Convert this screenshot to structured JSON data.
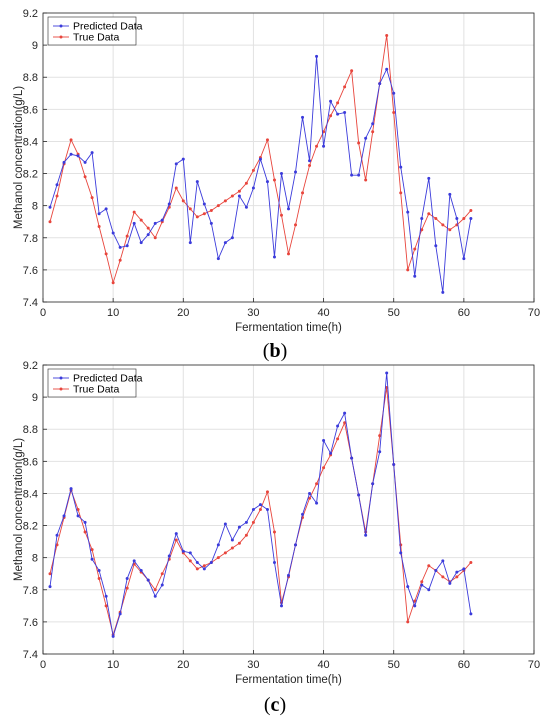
{
  "chart_data": [
    {
      "type": "line",
      "panel_label": "b",
      "xlabel": "Fermentation time(h)",
      "ylabel": "Methanol concentration(g/L)",
      "xlim": [
        0,
        70
      ],
      "ylim": [
        7.4,
        9.2
      ],
      "xticks": [
        0,
        10,
        20,
        30,
        40,
        50,
        60,
        70
      ],
      "yticks": [
        7.4,
        7.6,
        7.8,
        8.0,
        8.2,
        8.4,
        8.6,
        8.8,
        9.0,
        9.2
      ],
      "ytick_labels": [
        "7.4",
        "7.6",
        "7.8",
        "8",
        "8.2",
        "8.4",
        "8.6",
        "8.8",
        "9",
        "9.2"
      ],
      "grid": true,
      "legend": "top-left",
      "colors": {
        "predicted": "#3b3bdb",
        "true": "#e8453c"
      },
      "x": [
        1,
        2,
        3,
        4,
        5,
        6,
        7,
        8,
        9,
        10,
        11,
        12,
        13,
        14,
        15,
        16,
        17,
        18,
        19,
        20,
        21,
        22,
        23,
        24,
        25,
        26,
        27,
        28,
        29,
        30,
        31,
        32,
        33,
        34,
        35,
        36,
        37,
        38,
        39,
        40,
        41,
        42,
        43,
        44,
        45,
        46,
        47,
        48,
        49,
        50,
        51,
        52,
        53,
        54,
        55,
        56,
        57,
        58,
        59,
        60,
        61
      ],
      "series": [
        {
          "name": "Predicted Data",
          "values": [
            7.99,
            8.13,
            8.27,
            8.32,
            8.31,
            8.27,
            8.33,
            7.95,
            7.98,
            7.83,
            7.74,
            7.75,
            7.89,
            7.77,
            7.82,
            7.89,
            7.91,
            8.01,
            8.26,
            8.29,
            7.77,
            8.15,
            8.01,
            7.89,
            7.67,
            7.77,
            7.8,
            8.06,
            7.99,
            8.11,
            8.29,
            8.15,
            7.68,
            8.2,
            7.98,
            8.21,
            8.55,
            8.28,
            8.93,
            8.37,
            8.65,
            8.57,
            8.58,
            8.19,
            8.19,
            8.42,
            8.51,
            8.76,
            8.85,
            8.7,
            8.24,
            7.96,
            7.56,
            7.92,
            8.17,
            7.75,
            7.46,
            8.07,
            7.92,
            7.67,
            7.92
          ]
        },
        {
          "name": "True Data",
          "values": [
            7.9,
            8.06,
            8.26,
            8.41,
            8.32,
            8.18,
            8.05,
            7.87,
            7.7,
            7.52,
            7.66,
            7.81,
            7.96,
            7.91,
            7.86,
            7.8,
            7.9,
            7.99,
            8.11,
            8.03,
            7.98,
            7.93,
            7.95,
            7.97,
            8.0,
            8.03,
            8.06,
            8.09,
            8.14,
            8.22,
            8.3,
            8.41,
            8.16,
            7.94,
            7.7,
            7.88,
            8.08,
            8.25,
            8.37,
            8.46,
            8.56,
            8.64,
            8.74,
            8.84,
            8.39,
            8.16,
            8.46,
            8.76,
            9.06,
            8.58,
            8.08,
            7.6,
            7.73,
            7.85,
            7.95,
            7.92,
            7.88,
            7.85,
            7.88,
            7.92,
            7.97
          ]
        }
      ]
    },
    {
      "type": "line",
      "panel_label": "c",
      "xlabel": "Fermentation time(h)",
      "ylabel": "Methanol concentration(g/L)",
      "xlim": [
        0,
        70
      ],
      "ylim": [
        7.4,
        9.2
      ],
      "xticks": [
        0,
        10,
        20,
        30,
        40,
        50,
        60,
        70
      ],
      "yticks": [
        7.4,
        7.6,
        7.8,
        8.0,
        8.2,
        8.4,
        8.6,
        8.8,
        9.0,
        9.2
      ],
      "ytick_labels": [
        "7.4",
        "7.6",
        "7.8",
        "8",
        "8.2",
        "8.4",
        "8.6",
        "8.8",
        "9",
        "9.2"
      ],
      "grid": true,
      "legend": "top-left",
      "colors": {
        "predicted": "#3b3bdb",
        "true": "#e8453c"
      },
      "x": [
        1,
        2,
        3,
        4,
        5,
        6,
        7,
        8,
        9,
        10,
        11,
        12,
        13,
        14,
        15,
        16,
        17,
        18,
        19,
        20,
        21,
        22,
        23,
        24,
        25,
        26,
        27,
        28,
        29,
        30,
        31,
        32,
        33,
        34,
        35,
        36,
        37,
        38,
        39,
        40,
        41,
        42,
        43,
        44,
        45,
        46,
        47,
        48,
        49,
        50,
        51,
        52,
        53,
        54,
        55,
        56,
        57,
        58,
        59,
        60,
        61
      ],
      "series": [
        {
          "name": "Predicted Data",
          "values": [
            7.82,
            8.14,
            8.26,
            8.43,
            8.26,
            8.22,
            7.99,
            7.92,
            7.76,
            7.51,
            7.65,
            7.87,
            7.98,
            7.92,
            7.86,
            7.76,
            7.83,
            8.01,
            8.15,
            8.04,
            8.03,
            7.97,
            7.93,
            7.97,
            8.08,
            8.21,
            8.11,
            8.19,
            8.22,
            8.3,
            8.33,
            8.3,
            7.97,
            7.7,
            7.89,
            8.08,
            8.27,
            8.4,
            8.34,
            8.73,
            8.65,
            8.82,
            8.9,
            8.62,
            8.39,
            8.14,
            8.46,
            8.66,
            9.15,
            8.58,
            8.03,
            7.82,
            7.7,
            7.83,
            7.8,
            7.92,
            7.98,
            7.84,
            7.91,
            7.93,
            7.65
          ]
        },
        {
          "name": "True Data",
          "values": [
            7.9,
            8.08,
            8.25,
            8.42,
            8.3,
            8.16,
            8.05,
            7.87,
            7.7,
            7.52,
            7.66,
            7.81,
            7.96,
            7.91,
            7.86,
            7.8,
            7.9,
            7.99,
            8.11,
            8.03,
            7.98,
            7.93,
            7.95,
            7.97,
            8.0,
            8.03,
            8.06,
            8.09,
            8.14,
            8.22,
            8.3,
            8.41,
            8.16,
            7.72,
            7.88,
            8.08,
            8.25,
            8.37,
            8.46,
            8.56,
            8.64,
            8.74,
            8.84,
            8.62,
            8.39,
            8.16,
            8.46,
            8.76,
            9.06,
            8.58,
            8.08,
            7.6,
            7.73,
            7.85,
            7.95,
            7.92,
            7.88,
            7.85,
            7.88,
            7.92,
            7.97
          ]
        }
      ]
    }
  ]
}
